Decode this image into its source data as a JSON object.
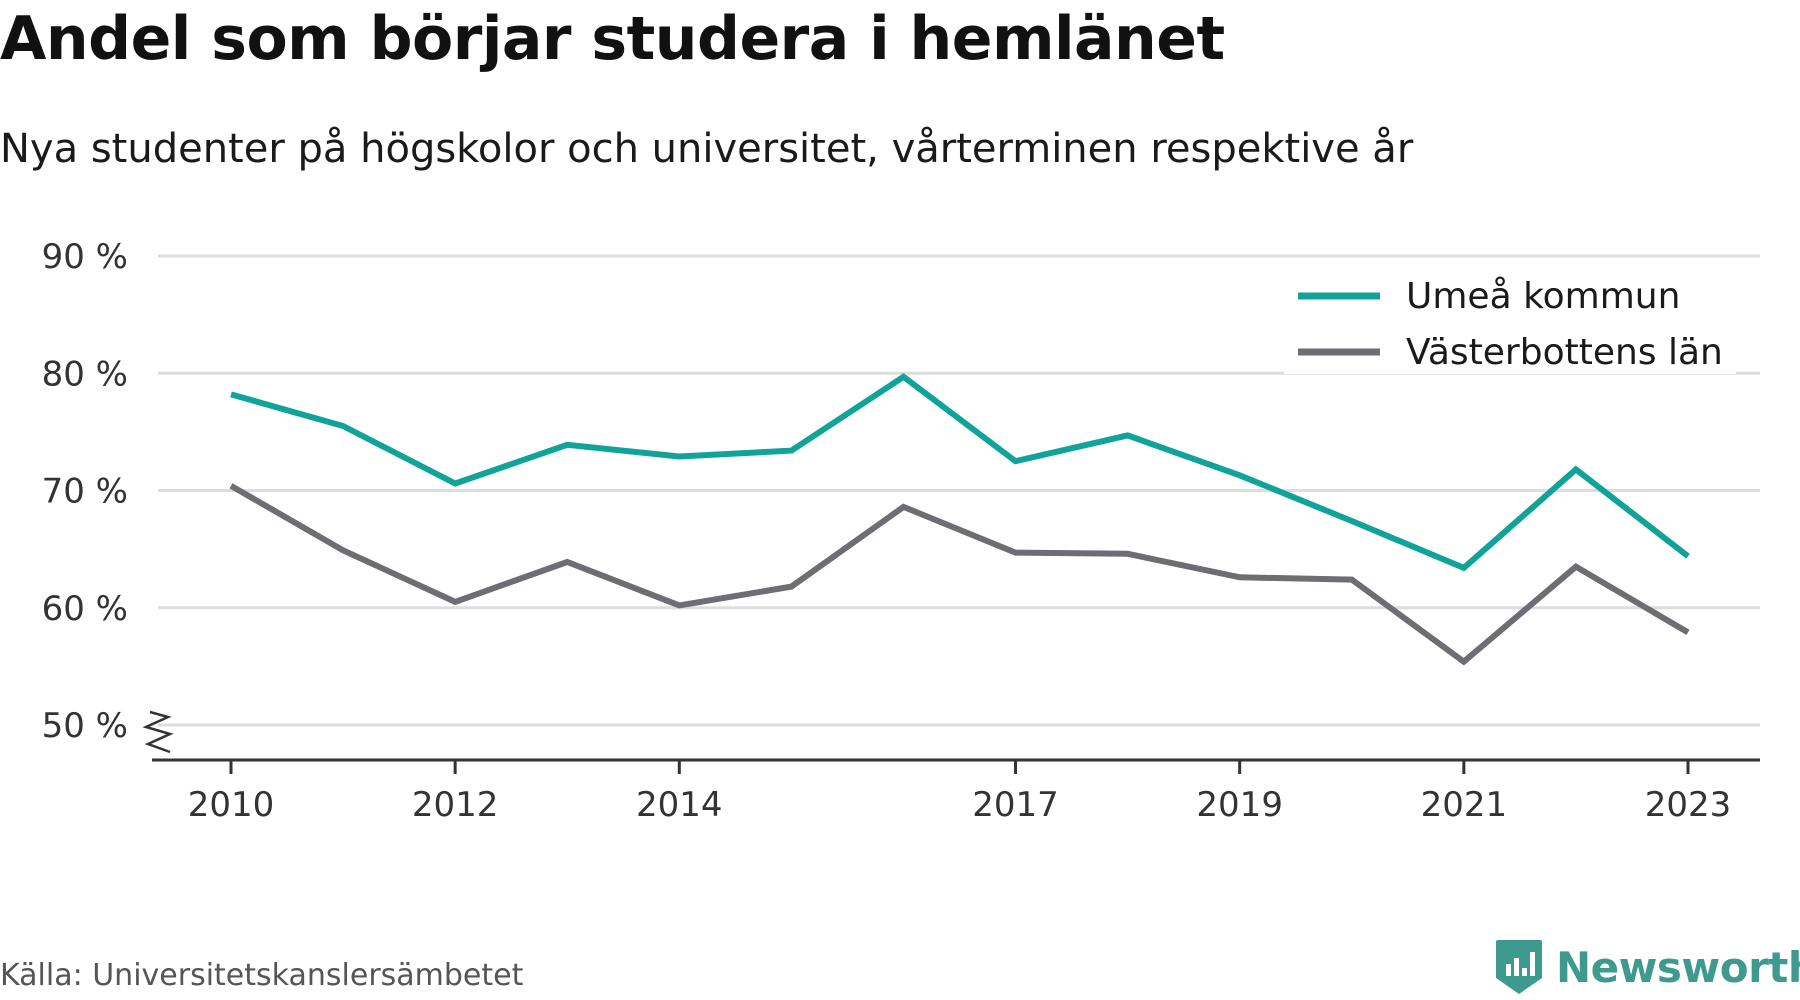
{
  "header": {
    "title": "Andel som börjar studera i hemlänet",
    "subtitle": "Nya studenter på högskolor och universitet, vårterminen respektive år"
  },
  "footer": {
    "source": "Källa: Universitetskanslersämbetet",
    "brand": "Newsworthy",
    "brand_icon": "bar-chart-badge-icon"
  },
  "colors": {
    "umea": "#10a39a",
    "vasterbotten": "#6d6e73",
    "grid": "#dddddd",
    "axis": "#333333",
    "brand": "#3e9a8e"
  },
  "chart_data": {
    "type": "line",
    "x": [
      2010,
      2011,
      2012,
      2013,
      2014,
      2015,
      2016,
      2017,
      2018,
      2019,
      2020,
      2021,
      2022,
      2023
    ],
    "x_tick_labels": [
      "2010",
      "2012",
      "2014",
      "2017",
      "2019",
      "2021",
      "2023"
    ],
    "x_tick_values": [
      2010,
      2012,
      2014,
      2017,
      2019,
      2021,
      2023
    ],
    "y_tick_labels": [
      "50 %",
      "60 %",
      "70 %",
      "80 %",
      "90 %"
    ],
    "y_tick_values": [
      50,
      60,
      70,
      80,
      90
    ],
    "ylim": [
      50,
      90
    ],
    "y_axis_break": true,
    "grid": true,
    "legend_position": "top-right",
    "series": [
      {
        "name": "Umeå kommun",
        "color": "#10a39a",
        "values": [
          78.2,
          75.5,
          70.6,
          73.9,
          72.9,
          73.4,
          79.7,
          72.5,
          74.7,
          71.3,
          67.4,
          63.4,
          71.8,
          64.4
        ]
      },
      {
        "name": "Västerbottens län",
        "color": "#6d6e73",
        "values": [
          70.4,
          64.9,
          60.5,
          63.9,
          60.2,
          61.8,
          68.6,
          64.7,
          64.6,
          62.6,
          62.4,
          55.4,
          63.5,
          57.9
        ]
      }
    ]
  }
}
